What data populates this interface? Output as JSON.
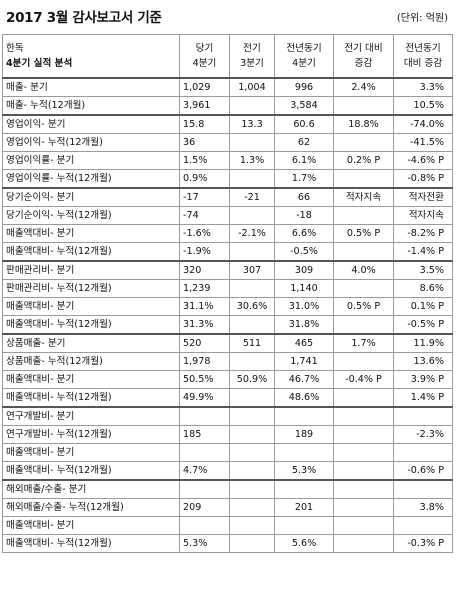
{
  "title": "2017 3월 감사보고서 기준",
  "unit": "(단위: 억원)",
  "header": {
    "company": "한독",
    "subtitle": "4분기 실적 분석",
    "col1": [
      "당기",
      "4분기"
    ],
    "col2": [
      "전기",
      "3분기"
    ],
    "col3": [
      "전년동기",
      "4분기"
    ],
    "col4": [
      "전기 대비",
      "증감"
    ],
    "col5": [
      "전년동기",
      "대비 증감"
    ]
  },
  "groups": [
    {
      "rows": [
        {
          "label": "매출- 분기",
          "v": [
            "1,029",
            "1,004",
            "996",
            "2.4%",
            "3.3%"
          ]
        },
        {
          "label": "매출- 누적(12개월)",
          "v": [
            "3,961",
            "",
            "3,584",
            "",
            "10.5%"
          ]
        }
      ]
    },
    {
      "rows": [
        {
          "label": "영업이익- 분기",
          "v": [
            "15.8",
            "13.3",
            "60.6",
            "18.8%",
            "-74.0%"
          ]
        },
        {
          "label": "영업이익- 누적(12개월)",
          "v": [
            "36",
            "",
            "62",
            "",
            "-41.5%"
          ]
        },
        {
          "label": "영업이익률- 분기",
          "v": [
            "1.5%",
            "1.3%",
            "6.1%",
            "0.2% P",
            "-4.6% P"
          ]
        },
        {
          "label": "영업이익률- 누적(12개월)",
          "v": [
            "0.9%",
            "",
            "1.7%",
            "",
            "-0.8% P"
          ]
        }
      ]
    },
    {
      "rows": [
        {
          "label": "당기순이익- 분기",
          "v": [
            "-17",
            "-21",
            "66",
            "적자지속",
            "적자전환"
          ]
        },
        {
          "label": "당기순이익- 누적(12개월)",
          "v": [
            "-74",
            "",
            "-18",
            "",
            "적자지속"
          ]
        },
        {
          "label": "매출액대비- 분기",
          "v": [
            "-1.6%",
            "-2.1%",
            "6.6%",
            "0.5% P",
            "-8.2% P"
          ]
        },
        {
          "label": "매출액대비- 누적(12개월)",
          "v": [
            "-1.9%",
            "",
            "-0.5%",
            "",
            "-1.4% P"
          ]
        }
      ]
    },
    {
      "rows": [
        {
          "label": "판매관리비- 분기",
          "v": [
            "320",
            "307",
            "309",
            "4.0%",
            "3.5%"
          ]
        },
        {
          "label": "판매관리비- 누적(12개월)",
          "v": [
            "1,239",
            "",
            "1,140",
            "",
            "8.6%"
          ]
        },
        {
          "label": "매출액대비- 분기",
          "v": [
            "31.1%",
            "30.6%",
            "31.0%",
            "0.5% P",
            "0.1% P"
          ]
        },
        {
          "label": "매출액대비- 누적(12개월)",
          "v": [
            "31.3%",
            "",
            "31.8%",
            "",
            "-0.5% P"
          ]
        }
      ]
    },
    {
      "rows": [
        {
          "label": "상품매출- 분기",
          "v": [
            "520",
            "511",
            "465",
            "1.7%",
            "11.9%"
          ]
        },
        {
          "label": "상품매출- 누적(12개월)",
          "v": [
            "1,978",
            "",
            "1,741",
            "",
            "13.6%"
          ]
        },
        {
          "label": "매출액대비- 분기",
          "v": [
            "50.5%",
            "50.9%",
            "46.7%",
            "-0.4% P",
            "3.9% P"
          ]
        },
        {
          "label": "매출액대비- 누적(12개월)",
          "v": [
            "49.9%",
            "",
            "48.6%",
            "",
            "1.4% P"
          ]
        }
      ]
    },
    {
      "rows": [
        {
          "label": "연구개발비- 분기",
          "v": [
            "",
            "",
            "",
            "",
            ""
          ]
        },
        {
          "label": "연구개발비- 누적(12개월)",
          "v": [
            "185",
            "",
            "189",
            "",
            "-2.3%"
          ]
        },
        {
          "label": "매출액대비- 분기",
          "v": [
            "",
            "",
            "",
            "",
            ""
          ]
        },
        {
          "label": "매출액대비- 누적(12개월)",
          "v": [
            "4.7%",
            "",
            "5.3%",
            "",
            "-0.6% P"
          ]
        }
      ]
    },
    {
      "rows": [
        {
          "label": "해외매출/수출- 분기",
          "v": [
            "",
            "",
            "",
            "",
            ""
          ]
        },
        {
          "label": "해외매출/수출- 누적(12개월)",
          "v": [
            "209",
            "",
            "201",
            "",
            "3.8%"
          ]
        },
        {
          "label": "매출액대비- 분기",
          "v": [
            "",
            "",
            "",
            "",
            ""
          ]
        },
        {
          "label": "매출액대비- 누적(12개월)",
          "v": [
            "5.3%",
            "",
            "5.6%",
            "",
            "-0.3% P"
          ]
        }
      ]
    }
  ]
}
